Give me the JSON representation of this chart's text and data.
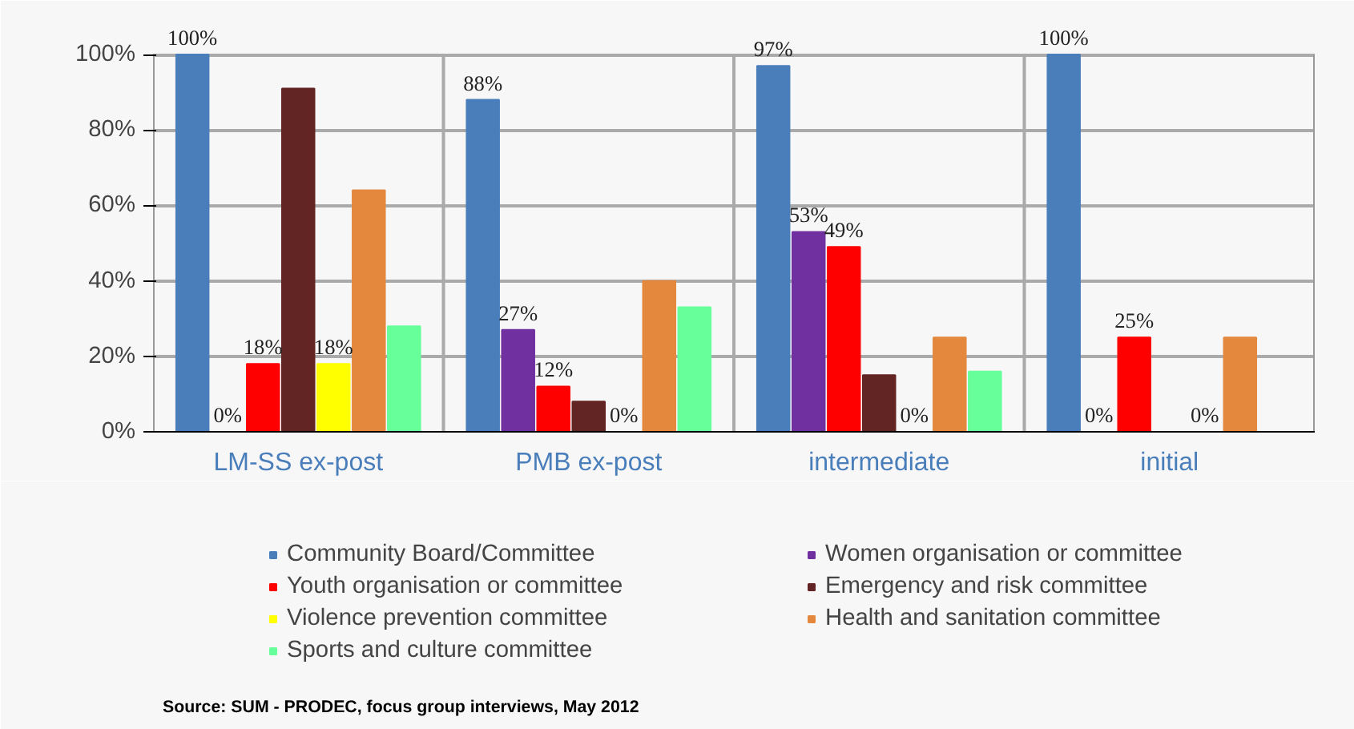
{
  "chart_data": {
    "type": "bar",
    "categories": [
      "LM-SS ex-post",
      "PMB ex-post",
      "intermediate",
      "initial"
    ],
    "series": [
      {
        "name": "Community Board/Committee",
        "color": "#4a7ebb",
        "values": [
          100,
          88,
          97,
          100
        ],
        "value_labels": [
          "100%",
          "88%",
          "97%",
          "100%"
        ]
      },
      {
        "name": "Women organisation or committee",
        "color": "#7030a0",
        "values": [
          0,
          27,
          53,
          0
        ],
        "value_labels": [
          "0%",
          "27%",
          "53%",
          "0%"
        ]
      },
      {
        "name": "Youth organisation or committee",
        "color": "#ff0000",
        "values": [
          18,
          12,
          49,
          25
        ],
        "value_labels": [
          "18%",
          "12%",
          "49%",
          "25%"
        ]
      },
      {
        "name": "Emergency and risk committee",
        "color": "#632523",
        "values": [
          91,
          8,
          15,
          0
        ]
      },
      {
        "name": "Violence prevention committee",
        "color": "#ffff00",
        "values": [
          18,
          0,
          0,
          0
        ],
        "value_labels": [
          "18%",
          "0%",
          "0%",
          "0%"
        ]
      },
      {
        "name": "Health and sanitation committee",
        "color": "#e4883e",
        "values": [
          64,
          40,
          25,
          25
        ]
      },
      {
        "name": "Sports and culture committee",
        "color": "#66ff99",
        "values": [
          28,
          33,
          16,
          0
        ]
      }
    ],
    "ylim": [
      0,
      100
    ],
    "yticks": [
      {
        "value": 0,
        "label": "0%"
      },
      {
        "value": 20,
        "label": "20%"
      },
      {
        "value": 40,
        "label": "40%"
      },
      {
        "value": 60,
        "label": "60%"
      },
      {
        "value": 80,
        "label": "80%"
      },
      {
        "value": 100,
        "label": "100%"
      }
    ],
    "grid": "y",
    "legend": "bottom",
    "annotations": [
      "Source: SUM - PRODEC, focus group interviews, May 2012"
    ]
  }
}
